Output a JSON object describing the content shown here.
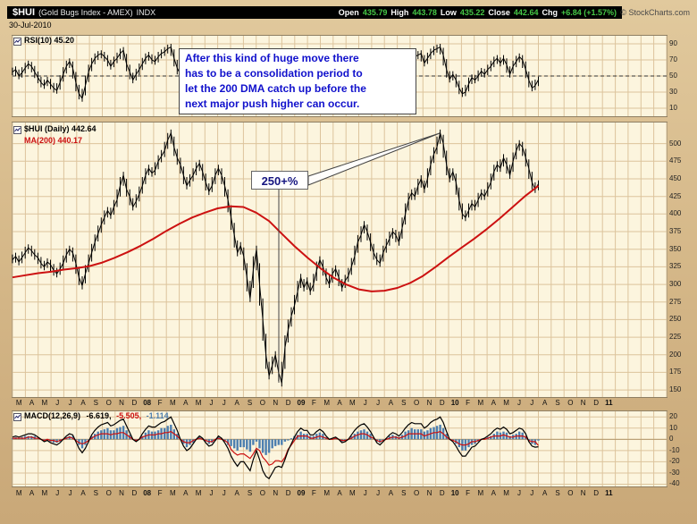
{
  "header": {
    "symbol": "$HUI",
    "symbol_desc": "(Gold Bugs Index - AMEX)",
    "exchange": "INDX",
    "date": "30-Jul-2010",
    "copyright": "© StockCharts.com",
    "quote": {
      "open_label": "Open",
      "open_value": "435.79",
      "high_label": "High",
      "high_value": "443.78",
      "low_label": "Low",
      "low_value": "435.22",
      "close_label": "Close",
      "close_value": "442.64",
      "chg_label": "Chg",
      "chg_value": "+6.84 (+1.57%)"
    }
  },
  "panels": {
    "rsi": {
      "label": "RSI(10) 45.20"
    },
    "price": {
      "label": "$HUI (Daily) 442.64",
      "ma_label": "MA(200) 440.17"
    },
    "macd": {
      "name": "MACD(12,26,9)",
      "macd_value": "-6.619,",
      "signal_value": "-5.505,",
      "hist_value": "-1.114"
    }
  },
  "annotations": {
    "note_text": "After this kind of huge move there\nhas to be a consolidation period to\nlet the 200 DMA catch up before the\nnext major push higher can occur.",
    "move_label": "250+%"
  },
  "xaxis": {
    "labels": [
      "M",
      "A",
      "M",
      "J",
      "J",
      "A",
      "S",
      "O",
      "N",
      "D",
      "08",
      "F",
      "M",
      "A",
      "M",
      "J",
      "J",
      "A",
      "S",
      "O",
      "N",
      "D",
      "09",
      "F",
      "M",
      "A",
      "M",
      "J",
      "J",
      "A",
      "S",
      "O",
      "N",
      "D",
      "10",
      "F",
      "M",
      "A",
      "M",
      "J",
      "J",
      "A",
      "S",
      "O",
      "N",
      "D",
      "11",
      "",
      "",
      "",
      ""
    ]
  },
  "colors": {
    "background": "#D6B98A",
    "panel_bg": "#FCF5DE",
    "grid": "#DCC49C",
    "price_line": "#000000",
    "ma_line": "#CC1111",
    "rsi_line": "#000000",
    "macd_line": "#000000",
    "signal_line": "#CC1111",
    "histogram": "#4C7FB0",
    "annotation_text": "#1111CC",
    "quote_up": "#46C846",
    "header_bg": "#000000"
  },
  "chart_data": [
    {
      "type": "line",
      "title": "RSI(10) 45.20",
      "x_range": "Mar-2007 to Jul-2010, weekly",
      "yrange": [
        0,
        100
      ],
      "yticks": [
        90,
        70,
        50,
        30,
        10
      ],
      "ref_level": 50,
      "values": [
        55,
        58,
        50,
        54,
        60,
        65,
        62,
        55,
        48,
        42,
        38,
        45,
        40,
        35,
        32,
        42,
        52,
        62,
        68,
        60,
        42,
        28,
        22,
        38,
        55,
        65,
        72,
        76,
        78,
        74,
        70,
        62,
        68,
        72,
        78,
        82,
        65,
        55,
        45,
        52,
        58,
        65,
        72,
        76,
        70,
        68,
        74,
        78,
        80,
        84,
        86,
        72,
        60,
        52,
        45,
        40,
        46,
        52,
        58,
        62,
        54,
        45,
        38,
        44,
        52,
        58,
        52,
        44,
        36,
        28,
        22,
        18,
        30,
        28,
        22,
        18,
        35,
        48,
        30,
        18,
        12,
        10,
        20,
        28,
        22,
        18,
        35,
        45,
        52,
        58,
        64,
        68,
        58,
        62,
        52,
        56,
        64,
        70,
        62,
        52,
        46,
        54,
        58,
        50,
        42,
        48,
        52,
        60,
        68,
        74,
        76,
        78,
        70,
        60,
        48,
        40,
        38,
        48,
        55,
        60,
        64,
        60,
        54,
        62,
        72,
        78,
        80,
        74,
        76,
        78,
        66,
        72,
        78,
        82,
        84,
        86,
        76,
        58,
        46,
        52,
        45,
        35,
        28,
        30,
        40,
        48,
        45,
        50,
        56,
        52,
        58,
        62,
        68,
        72,
        66,
        72,
        64,
        52,
        62,
        68,
        74,
        70,
        58,
        45,
        35,
        38,
        45.2
      ]
    },
    {
      "type": "line",
      "title": "$HUI (Daily) 442.64",
      "x_range": "Mar-2007 to Jul-2010, weekly (axis extends to 2011)",
      "yticks": [
        500,
        475,
        450,
        425,
        400,
        375,
        350,
        325,
        300,
        275,
        250,
        225,
        200,
        175,
        150
      ],
      "series": [
        {
          "name": "$HUI close",
          "color": "#000000",
          "values": [
            335,
            340,
            332,
            338,
            345,
            352,
            348,
            342,
            338,
            330,
            325,
            332,
            328,
            320,
            315,
            322,
            330,
            342,
            350,
            345,
            330,
            310,
            298,
            315,
            330,
            345,
            360,
            372,
            385,
            395,
            405,
            398,
            410,
            420,
            440,
            455,
            435,
            425,
            410,
            418,
            428,
            440,
            455,
            465,
            458,
            462,
            475,
            482,
            490,
            505,
            515,
            495,
            480,
            470,
            455,
            440,
            448,
            455,
            465,
            472,
            460,
            445,
            432,
            440,
            455,
            465,
            455,
            440,
            420,
            395,
            370,
            345,
            355,
            340,
            310,
            280,
            320,
            350,
            300,
            250,
            200,
            170,
            185,
            200,
            175,
            160,
            210,
            235,
            255,
            270,
            290,
            310,
            295,
            305,
            290,
            300,
            320,
            335,
            325,
            310,
            300,
            315,
            322,
            310,
            295,
            305,
            312,
            325,
            340,
            360,
            370,
            385,
            375,
            360,
            345,
            335,
            330,
            345,
            355,
            365,
            375,
            370,
            360,
            380,
            400,
            420,
            430,
            425,
            440,
            450,
            435,
            450,
            470,
            485,
            495,
            515,
            500,
            470,
            450,
            460,
            445,
            420,
            400,
            395,
            405,
            415,
            410,
            420,
            430,
            425,
            435,
            445,
            460,
            470,
            465,
            480,
            470,
            455,
            475,
            490,
            500,
            495,
            480,
            465,
            445,
            435,
            442.64
          ]
        },
        {
          "name": "MA(200)",
          "color": "#CC1111",
          "x_step": "monthly",
          "values": [
            310,
            313,
            316,
            318,
            321,
            323,
            326,
            331,
            338,
            346,
            355,
            365,
            376,
            386,
            395,
            402,
            408,
            411,
            410,
            402,
            390,
            372,
            354,
            338,
            323,
            310,
            300,
            293,
            290,
            291,
            295,
            302,
            312,
            325,
            339,
            352,
            365,
            379,
            394,
            410,
            426,
            440
          ]
        }
      ]
    },
    {
      "type": "line+histogram",
      "title": "MACD(12,26,9) -6.619, -5.505, -1.114",
      "yticks": [
        20,
        10,
        0,
        -10,
        -20,
        -30,
        -40
      ],
      "series": [
        {
          "name": "MACD line",
          "color": "#000000",
          "values": [
            2,
            3,
            2,
            3,
            4,
            5,
            5,
            4,
            2,
            0,
            -2,
            -1,
            -3,
            -4,
            -5,
            -3,
            0,
            3,
            5,
            4,
            -2,
            -8,
            -12,
            -8,
            -2,
            4,
            8,
            11,
            13,
            14,
            15,
            12,
            13,
            15,
            17,
            18,
            12,
            6,
            0,
            -2,
            0,
            5,
            9,
            12,
            11,
            11,
            13,
            15,
            16,
            18,
            20,
            14,
            8,
            0,
            -6,
            -10,
            -8,
            -4,
            0,
            3,
            1,
            -3,
            -6,
            -5,
            -1,
            3,
            1,
            -3,
            -8,
            -15,
            -20,
            -24,
            -20,
            -20,
            -24,
            -28,
            -18,
            -10,
            -18,
            -28,
            -33,
            -35,
            -30,
            -25,
            -24,
            -25,
            -18,
            -10,
            -4,
            2,
            7,
            10,
            8,
            8,
            4,
            4,
            7,
            9,
            7,
            3,
            0,
            1,
            2,
            0,
            -3,
            -2,
            0,
            4,
            8,
            11,
            13,
            14,
            11,
            7,
            2,
            -3,
            -5,
            -2,
            1,
            4,
            6,
            5,
            3,
            6,
            10,
            13,
            15,
            14,
            14,
            14,
            10,
            12,
            15,
            17,
            18,
            20,
            15,
            7,
            0,
            -2,
            -6,
            -11,
            -15,
            -15,
            -11,
            -7,
            -6,
            -3,
            0,
            1,
            3,
            5,
            8,
            10,
            9,
            11,
            9,
            5,
            6,
            8,
            10,
            9,
            5,
            -2,
            -6,
            -7,
            -6.619
          ]
        },
        {
          "name": "MACD histogram",
          "color": "#4C7FB0",
          "values": [
            1,
            2,
            1,
            2,
            3,
            3,
            3,
            3,
            1,
            0,
            -1,
            -1,
            -2,
            -3,
            -3,
            -2,
            0,
            2,
            3,
            3,
            -1,
            -5,
            -8,
            -5,
            -1,
            3,
            5,
            7,
            8,
            9,
            10,
            8,
            8,
            10,
            11,
            12,
            8,
            4,
            0,
            -1,
            0,
            3,
            6,
            8,
            7,
            7,
            8,
            10,
            10,
            12,
            13,
            9,
            5,
            0,
            -4,
            -7,
            -5,
            -3,
            0,
            2,
            1,
            -2,
            -4,
            -3,
            -1,
            2,
            1,
            -2,
            -5,
            -6,
            -8,
            -10,
            -7,
            -7,
            -9,
            -11,
            -5,
            -2,
            -8,
            -12,
            -14,
            -12,
            -8,
            -6,
            -5,
            -5,
            -2,
            -1,
            1,
            3,
            4,
            7,
            5,
            5,
            3,
            3,
            5,
            6,
            5,
            2,
            0,
            1,
            1,
            0,
            -2,
            -1,
            0,
            3,
            5,
            7,
            8,
            9,
            7,
            5,
            1,
            -2,
            -3,
            -1,
            1,
            3,
            4,
            3,
            2,
            4,
            7,
            8,
            10,
            9,
            9,
            9,
            7,
            8,
            10,
            11,
            12,
            13,
            10,
            5,
            0,
            -1,
            -4,
            -7,
            -10,
            -10,
            -7,
            -5,
            -4,
            -2,
            0,
            1,
            2,
            3,
            5,
            7,
            6,
            7,
            6,
            3,
            4,
            5,
            7,
            6,
            3,
            -1,
            -4,
            -5,
            -1.114
          ]
        }
      ],
      "note": "signal line (red) = MACD line minus histogram"
    }
  ]
}
